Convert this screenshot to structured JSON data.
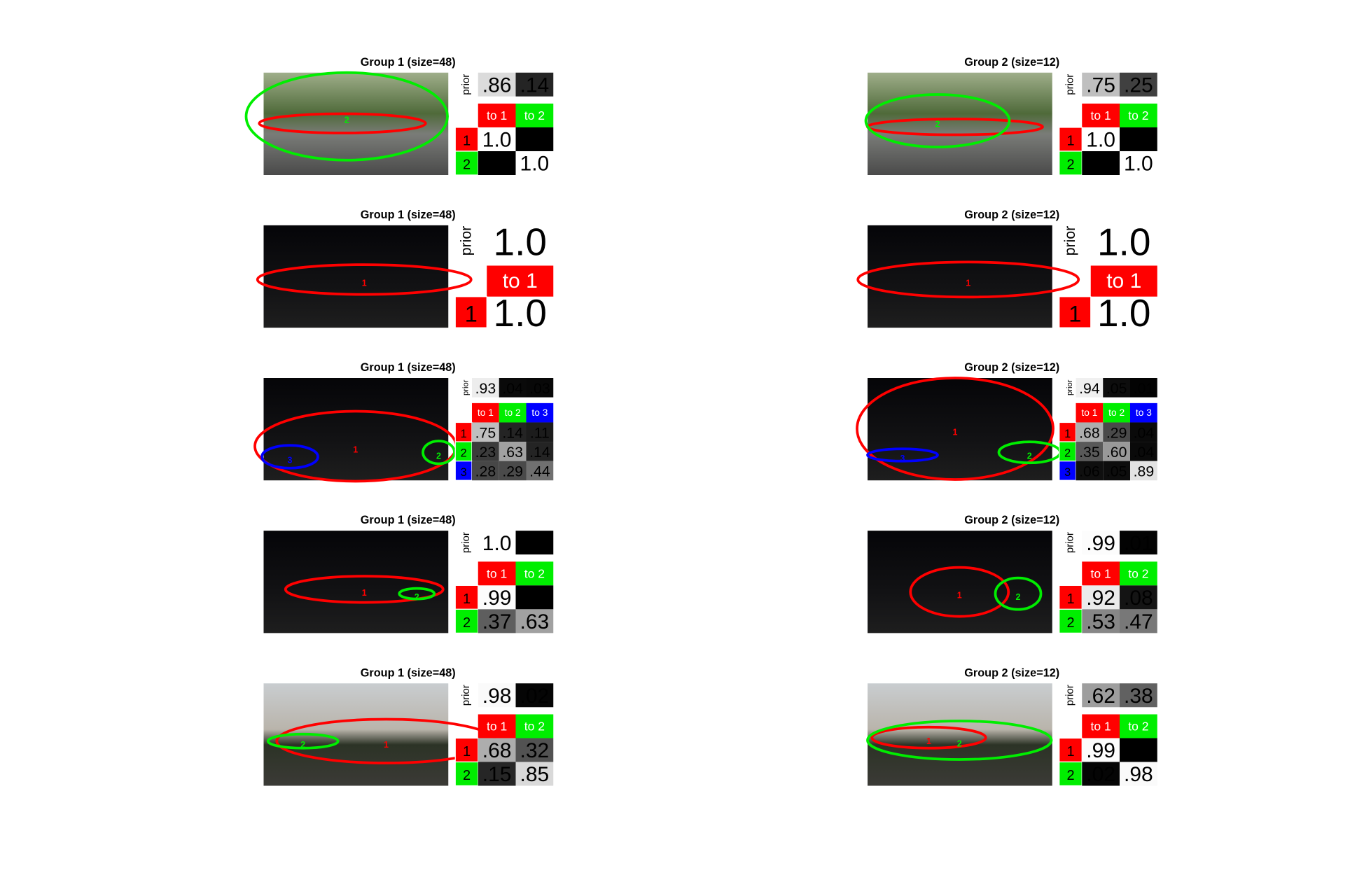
{
  "prior_label": "prior",
  "panels": [
    {
      "title": "Group 1 (size=48)",
      "prior": [
        ".86",
        ".14"
      ],
      "headers": [
        "to 1",
        "to 2"
      ],
      "rows": [
        {
          "label": "1",
          "cells": [
            "1.0",
            null
          ]
        },
        {
          "label": "2",
          "cells": [
            null,
            "1.0"
          ]
        }
      ],
      "ellipse_labels": [
        null,
        "2"
      ]
    },
    {
      "title": "Group 2 (size=12)",
      "prior": [
        ".75",
        ".25"
      ],
      "headers": [
        "to 1",
        "to 2"
      ],
      "rows": [
        {
          "label": "1",
          "cells": [
            "1.0",
            null
          ]
        },
        {
          "label": "2",
          "cells": [
            null,
            "1.0"
          ]
        }
      ],
      "ellipse_labels": [
        null,
        "2"
      ]
    },
    {
      "title": "Group 1 (size=48)",
      "prior": [
        "1.0"
      ],
      "headers": [
        "to 1"
      ],
      "rows": [
        {
          "label": "1",
          "cells": [
            "1.0"
          ]
        }
      ],
      "ellipse_labels": [
        "1"
      ]
    },
    {
      "title": "Group 2 (size=12)",
      "prior": [
        "1.0"
      ],
      "headers": [
        "to 1"
      ],
      "rows": [
        {
          "label": "1",
          "cells": [
            "1.0"
          ]
        }
      ],
      "ellipse_labels": [
        "1"
      ]
    },
    {
      "title": "Group 1 (size=48)",
      "prior": [
        ".93",
        ".04",
        ".03"
      ],
      "headers": [
        "to 1",
        "to 2",
        "to 3"
      ],
      "rows": [
        {
          "label": "1",
          "cells": [
            ".75",
            ".14",
            ".11"
          ]
        },
        {
          "label": "2",
          "cells": [
            ".23",
            ".63",
            ".14"
          ]
        },
        {
          "label": "3",
          "cells": [
            ".28",
            ".29",
            ".44"
          ]
        }
      ],
      "ellipse_labels": [
        "1",
        "2",
        "3"
      ]
    },
    {
      "title": "Group 2 (size=12)",
      "prior": [
        ".94",
        ".05",
        ".01"
      ],
      "headers": [
        "to 1",
        "to 2",
        "to 3"
      ],
      "rows": [
        {
          "label": "1",
          "cells": [
            ".68",
            ".29",
            ".04"
          ]
        },
        {
          "label": "2",
          "cells": [
            ".35",
            ".60",
            ".04"
          ]
        },
        {
          "label": "3",
          "cells": [
            ".06",
            ".05",
            ".89"
          ]
        }
      ],
      "ellipse_labels": [
        "1",
        "2",
        "3"
      ]
    },
    {
      "title": "Group 1 (size=48)",
      "prior": [
        "1.0",
        null
      ],
      "headers": [
        "to 1",
        "to 2"
      ],
      "rows": [
        {
          "label": "1",
          "cells": [
            ".99",
            null
          ]
        },
        {
          "label": "2",
          "cells": [
            ".37",
            ".63"
          ]
        }
      ],
      "ellipse_labels": [
        "1",
        "2"
      ]
    },
    {
      "title": "Group 2 (size=12)",
      "prior": [
        ".99",
        ".01"
      ],
      "headers": [
        "to 1",
        "to 2"
      ],
      "rows": [
        {
          "label": "1",
          "cells": [
            ".92",
            ".08"
          ]
        },
        {
          "label": "2",
          "cells": [
            ".53",
            ".47"
          ]
        }
      ],
      "ellipse_labels": [
        "1",
        "2"
      ]
    },
    {
      "title": "Group 1 (size=48)",
      "prior": [
        ".98",
        ".02"
      ],
      "headers": [
        "to 1",
        "to 2"
      ],
      "rows": [
        {
          "label": "1",
          "cells": [
            ".68",
            ".32"
          ]
        },
        {
          "label": "2",
          "cells": [
            ".15",
            ".85"
          ]
        }
      ],
      "ellipse_labels": [
        "1",
        "2"
      ]
    },
    {
      "title": "Group 2 (size=12)",
      "prior": [
        ".62",
        ".38"
      ],
      "headers": [
        "to 1",
        "to 2"
      ],
      "rows": [
        {
          "label": "1",
          "cells": [
            ".99",
            null
          ]
        },
        {
          "label": "2",
          "cells": [
            ".02",
            ".98"
          ]
        }
      ],
      "ellipse_labels": [
        "1",
        "2"
      ]
    }
  ]
}
